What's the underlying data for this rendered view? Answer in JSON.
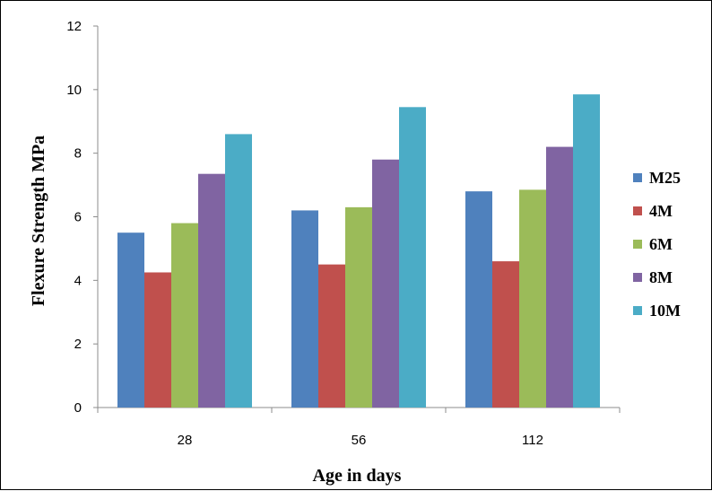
{
  "chart_data": {
    "type": "bar",
    "title": "",
    "xlabel": "Age in days",
    "ylabel": "Flexure Strength MPa",
    "categories": [
      "28",
      "56",
      "112"
    ],
    "ylim": [
      0,
      12
    ],
    "yticks": [
      "0",
      "2",
      "4",
      "6",
      "8",
      "10",
      "12"
    ],
    "grid": false,
    "legend_position": "right",
    "series": [
      {
        "name": "M25",
        "color": "#4F81BD",
        "values": [
          5.5,
          6.2,
          6.8
        ]
      },
      {
        "name": "4M",
        "color": "#C0504D",
        "values": [
          4.25,
          4.5,
          4.6
        ]
      },
      {
        "name": "6M",
        "color": "#9BBB59",
        "values": [
          5.8,
          6.3,
          6.85
        ]
      },
      {
        "name": "8M",
        "color": "#8064A2",
        "values": [
          7.35,
          7.8,
          8.2
        ]
      },
      {
        "name": "10M",
        "color": "#4BACC6",
        "values": [
          8.6,
          9.45,
          9.85
        ]
      }
    ]
  }
}
